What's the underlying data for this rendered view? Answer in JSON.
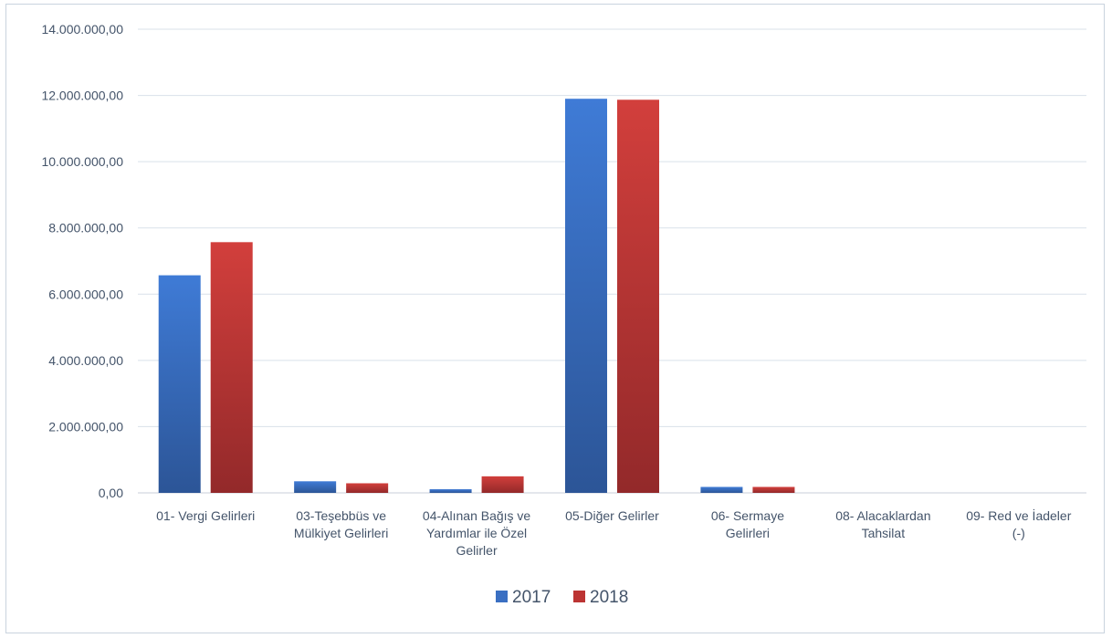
{
  "chart_data": {
    "type": "bar",
    "categories": [
      [
        "01- Vergi Gelirleri"
      ],
      [
        "03-Teşebbüs ve",
        "Mülkiyet Gelirleri"
      ],
      [
        "04-Alınan Bağış ve",
        "Yardımlar ile Özel",
        "Gelirler"
      ],
      [
        "05-Diğer Gelirler"
      ],
      [
        "06- Sermaye",
        "Gelirleri"
      ],
      [
        "08- Alacaklardan",
        "Tahsilat"
      ],
      [
        "09- Red ve İadeler",
        "(-)"
      ]
    ],
    "series": [
      {
        "name": "2017",
        "color": "#3a6fc2",
        "values": [
          6570000,
          350000,
          110000,
          11900000,
          180000,
          0,
          0
        ]
      },
      {
        "name": "2018",
        "color": "#bc3433",
        "values": [
          7570000,
          290000,
          500000,
          11870000,
          180000,
          0,
          0
        ]
      }
    ],
    "yticks": [
      "0,00",
      "2.000.000,00",
      "4.000.000,00",
      "6.000.000,00",
      "8.000.000,00",
      "10.000.000,00",
      "12.000.000,00",
      "14.000.000,00"
    ],
    "ylim": [
      0,
      14000000
    ],
    "grid": true,
    "legend_position": "bottom"
  }
}
